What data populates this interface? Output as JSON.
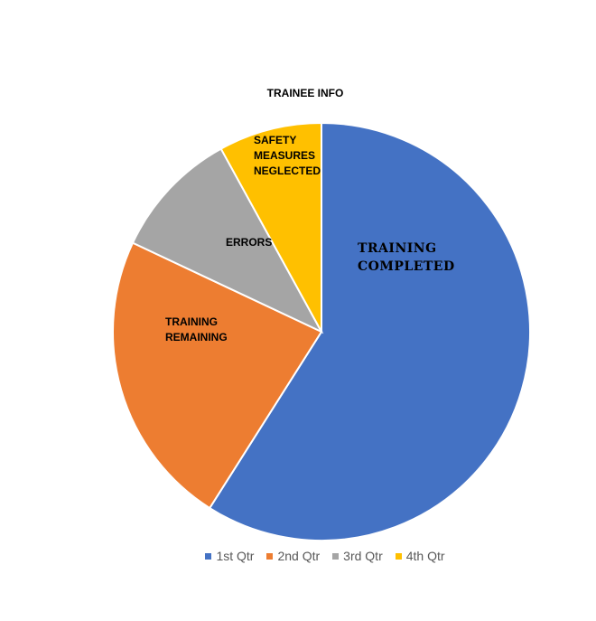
{
  "chart_data": {
    "type": "pie",
    "title": "TRAINEE INFO",
    "categories": [
      "1st Qtr",
      "2nd Qtr",
      "3rd Qtr",
      "4th Qtr"
    ],
    "values": [
      59,
      23,
      10,
      8
    ],
    "slice_labels": [
      [
        "TRAINING",
        "COMPLETED"
      ],
      [
        "TRAINING",
        "REMAINING"
      ],
      [
        "ERRORS"
      ],
      [
        "SAFETY",
        "MEASURES",
        "NEGLECTED"
      ]
    ],
    "colors": [
      "#4472C4",
      "#ED7D31",
      "#A5A5A5",
      "#FFC000"
    ],
    "start_angle": "12 o'clock",
    "direction": "clockwise",
    "legend_position": "bottom"
  }
}
